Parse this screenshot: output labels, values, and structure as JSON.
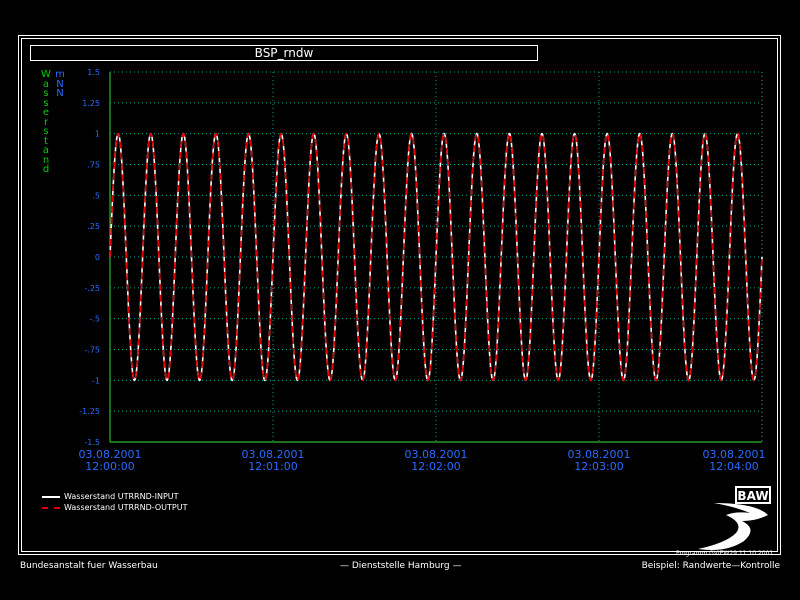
{
  "chart_data": {
    "type": "line",
    "title": "BSP_rndw",
    "ylabel": "Wasserstand",
    "yunit": "mNN",
    "ylim": [
      -1.5,
      1.5
    ],
    "yticks": [
      "1.5",
      "1.25",
      "1",
      ".75",
      ".5",
      ".25",
      "0",
      "-.25",
      "-.5",
      "-.75",
      "-1",
      "-1.25",
      "-1.5"
    ],
    "xlim_seconds": [
      0,
      240
    ],
    "xticks": [
      {
        "date": "03.08.2001",
        "time": "12:00:00"
      },
      {
        "date": "03.08.2001",
        "time": "12:01:00"
      },
      {
        "date": "03.08.2001",
        "time": "12:02:00"
      },
      {
        "date": "03.08.2001",
        "time": "12:03:00"
      },
      {
        "date": "03.08.2001",
        "time": "12:04:00"
      }
    ],
    "grid": true,
    "series": [
      {
        "name": "Wasserstand UTRRND-INPUT",
        "color": "#ffffff",
        "style": "solid",
        "function": "sine",
        "amplitude": 1,
        "period_seconds": 12,
        "phase_at_start": 0
      },
      {
        "name": "Wasserstand UTRRND-OUTPUT",
        "color": "#e00000",
        "style": "dashed",
        "function": "sine",
        "amplitude": 1,
        "period_seconds": 12,
        "phase_at_start": 0
      }
    ]
  },
  "colors": {
    "axis": "#2ab52a",
    "grid": "#00a0a0",
    "tick_label": "#2a6bff",
    "ylabel": "#00d000"
  },
  "logo": {
    "text": "BAW"
  },
  "program": "Programm GVIEW29    11.10.2001",
  "footer": {
    "left": "Bundesanstalt fuer Wasserbau",
    "center": "— Dienststelle Hamburg —",
    "right": "Beispiel: Randwerte—Kontrolle"
  }
}
